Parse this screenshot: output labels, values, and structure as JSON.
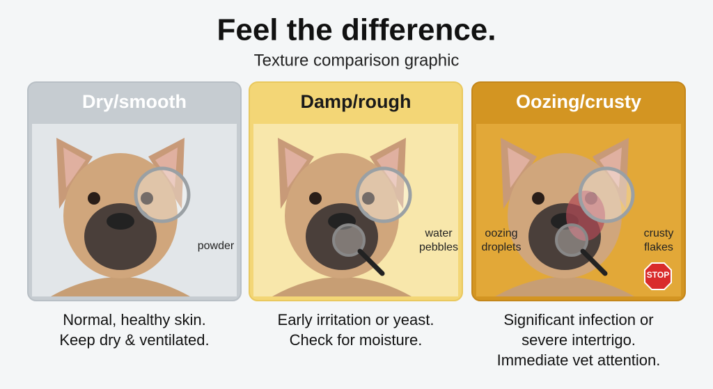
{
  "header": {
    "title": "Feel the difference.",
    "subtitle": "Texture comparison graphic"
  },
  "cards": [
    {
      "title": "Dry/smooth",
      "labels": [
        [
          "powder"
        ]
      ],
      "caption": [
        "Normal, healthy skin.",
        "Keep dry & ventilated."
      ]
    },
    {
      "title": "Damp/rough",
      "labels": [
        [
          "water",
          "pebbles"
        ]
      ],
      "caption": [
        "Early irritation or yeast.",
        "Check for moisture."
      ]
    },
    {
      "title": "Oozing/crusty",
      "labels": [
        [
          "oozing",
          "droplets"
        ],
        [
          "crusty",
          "flakes"
        ],
        [
          "STOP"
        ]
      ],
      "caption": [
        "Significant infection or",
        "severe intertrigo.",
        "Immediate vet attention."
      ]
    }
  ]
}
